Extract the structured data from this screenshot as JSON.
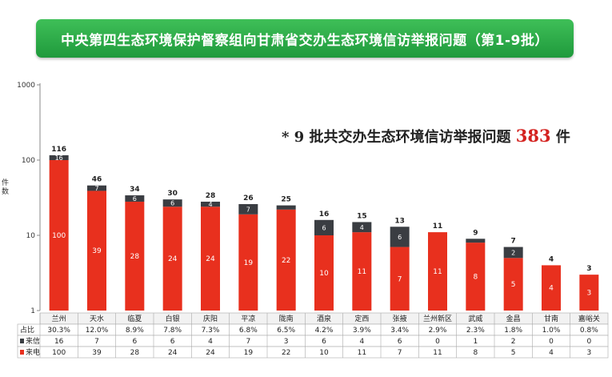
{
  "banner": {
    "title": "中央第四生态环境保护督察组向甘肃省交办生态环境信访举报问题（第1-9批）"
  },
  "headline": {
    "prefix": "* 9 批共交办生态环境信访举报问题",
    "total": "383",
    "suffix": "件"
  },
  "colors": {
    "phone": "#e8301e",
    "letter": "#3a3d42",
    "banner": "#2aa84a",
    "accent": "#d42320"
  },
  "chart_data": {
    "type": "bar",
    "stacked": true,
    "yscale": "log",
    "ylim": [
      1,
      1000
    ],
    "yticks": [
      "1",
      "10",
      "100",
      "1000"
    ],
    "ylabel": "件数",
    "categories": [
      "兰州",
      "天水",
      "临夏",
      "白银",
      "庆阳",
      "平凉",
      "陇南",
      "酒泉",
      "定西",
      "张掖",
      "兰州新区",
      "武威",
      "金昌",
      "甘南",
      "嘉峪关"
    ],
    "totals": [
      116,
      46,
      34,
      30,
      28,
      26,
      25,
      16,
      15,
      13,
      11,
      9,
      7,
      4,
      3
    ],
    "series": [
      {
        "name": "来电",
        "values": [
          100,
          39,
          28,
          24,
          24,
          19,
          22,
          10,
          11,
          7,
          11,
          8,
          5,
          4,
          3
        ]
      },
      {
        "name": "来信",
        "values": [
          16,
          7,
          6,
          6,
          4,
          7,
          3,
          6,
          4,
          6,
          0,
          1,
          2,
          0,
          0
        ]
      }
    ],
    "table": {
      "rows": [
        {
          "label": "占比",
          "values": [
            "30.3%",
            "12.0%",
            "8.9%",
            "7.8%",
            "7.3%",
            "6.8%",
            "6.5%",
            "4.2%",
            "3.9%",
            "3.4%",
            "2.9%",
            "2.3%",
            "1.8%",
            "1.0%",
            "0.8%"
          ]
        },
        {
          "label": "来信",
          "values": [
            "16",
            "7",
            "6",
            "6",
            "4",
            "7",
            "3",
            "6",
            "4",
            "6",
            "0",
            "1",
            "2",
            "0",
            "0"
          ]
        },
        {
          "label": "来电",
          "values": [
            "100",
            "39",
            "28",
            "24",
            "24",
            "19",
            "22",
            "10",
            "11",
            "7",
            "11",
            "8",
            "5",
            "4",
            "3"
          ]
        }
      ]
    }
  }
}
